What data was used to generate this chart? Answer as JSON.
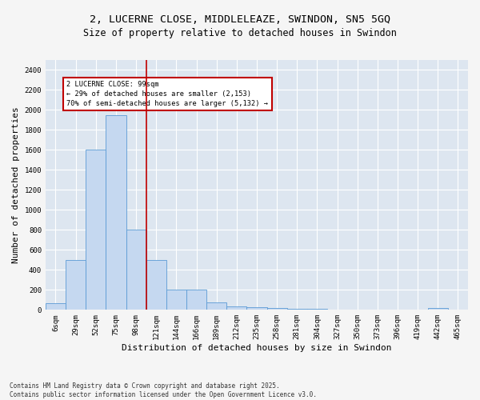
{
  "title_line1": "2, LUCERNE CLOSE, MIDDLELEAZE, SWINDON, SN5 5GQ",
  "title_line2": "Size of property relative to detached houses in Swindon",
  "xlabel": "Distribution of detached houses by size in Swindon",
  "ylabel": "Number of detached properties",
  "bar_color": "#c5d8f0",
  "bar_edge_color": "#5b9bd5",
  "categories": [
    "6sqm",
    "29sqm",
    "52sqm",
    "75sqm",
    "98sqm",
    "121sqm",
    "144sqm",
    "166sqm",
    "189sqm",
    "212sqm",
    "235sqm",
    "258sqm",
    "281sqm",
    "304sqm",
    "327sqm",
    "350sqm",
    "373sqm",
    "396sqm",
    "419sqm",
    "442sqm",
    "465sqm"
  ],
  "values": [
    70,
    500,
    1600,
    1950,
    800,
    500,
    200,
    200,
    75,
    35,
    30,
    15,
    10,
    10,
    5,
    5,
    5,
    0,
    0,
    20,
    0
  ],
  "ylim": [
    0,
    2500
  ],
  "yticks": [
    0,
    200,
    400,
    600,
    800,
    1000,
    1200,
    1400,
    1600,
    1800,
    2000,
    2200,
    2400
  ],
  "vline_pos": 4.5,
  "vline_color": "#c00000",
  "annotation_text": "2 LUCERNE CLOSE: 99sqm\n← 29% of detached houses are smaller (2,153)\n70% of semi-detached houses are larger (5,132) →",
  "annotation_box_color": "#c00000",
  "footnote": "Contains HM Land Registry data © Crown copyright and database right 2025.\nContains public sector information licensed under the Open Government Licence v3.0.",
  "fig_facecolor": "#f5f5f5",
  "background_color": "#dde6f0",
  "grid_color": "#ffffff",
  "title_fontsize": 9.5,
  "subtitle_fontsize": 8.5,
  "tick_fontsize": 6.5,
  "label_fontsize": 8,
  "footnote_fontsize": 5.5
}
